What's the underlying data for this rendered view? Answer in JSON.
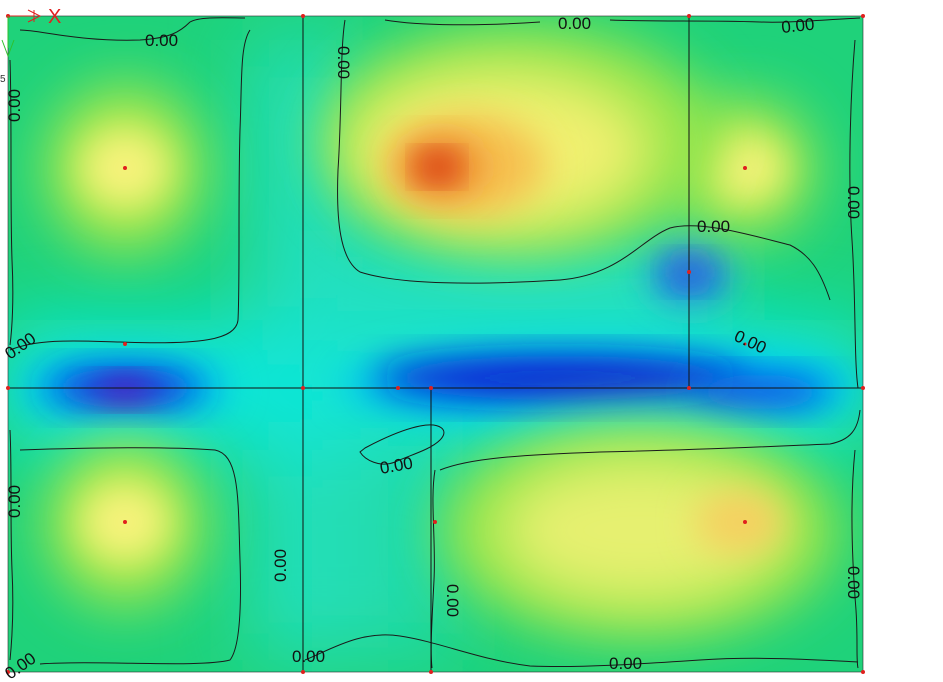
{
  "view": {
    "type": "contour-plot",
    "contour_level": "0.00",
    "axis_indicator": {
      "x_label": "X",
      "z_label": "5"
    },
    "colors": {
      "background": "#ffffff",
      "field_base": "#1fd27a",
      "grid_line": "#111111",
      "node": "#e0201e",
      "contour": "#1a1a1a",
      "axis_x": "#e02020",
      "axis_y": "#2ec02e"
    },
    "color_scale": [
      "#7a00b0",
      "#0010d0",
      "#00e6f0",
      "#20d070",
      "#f4f470",
      "#f0a020",
      "#cc1800"
    ]
  },
  "labels": [
    {
      "text": "0.00"
    },
    {
      "text": "0.00"
    },
    {
      "text": "0.00"
    },
    {
      "text": "0.00"
    },
    {
      "text": "0.00"
    },
    {
      "text": "0.00"
    },
    {
      "text": "0.00"
    },
    {
      "text": "0.00"
    },
    {
      "text": "0.00"
    },
    {
      "text": "0.00"
    },
    {
      "text": "0.00"
    },
    {
      "text": "0.00"
    },
    {
      "text": "0.00"
    },
    {
      "text": "0.00"
    },
    {
      "text": "0.00"
    },
    {
      "text": "0.00"
    },
    {
      "text": "0.00"
    }
  ]
}
